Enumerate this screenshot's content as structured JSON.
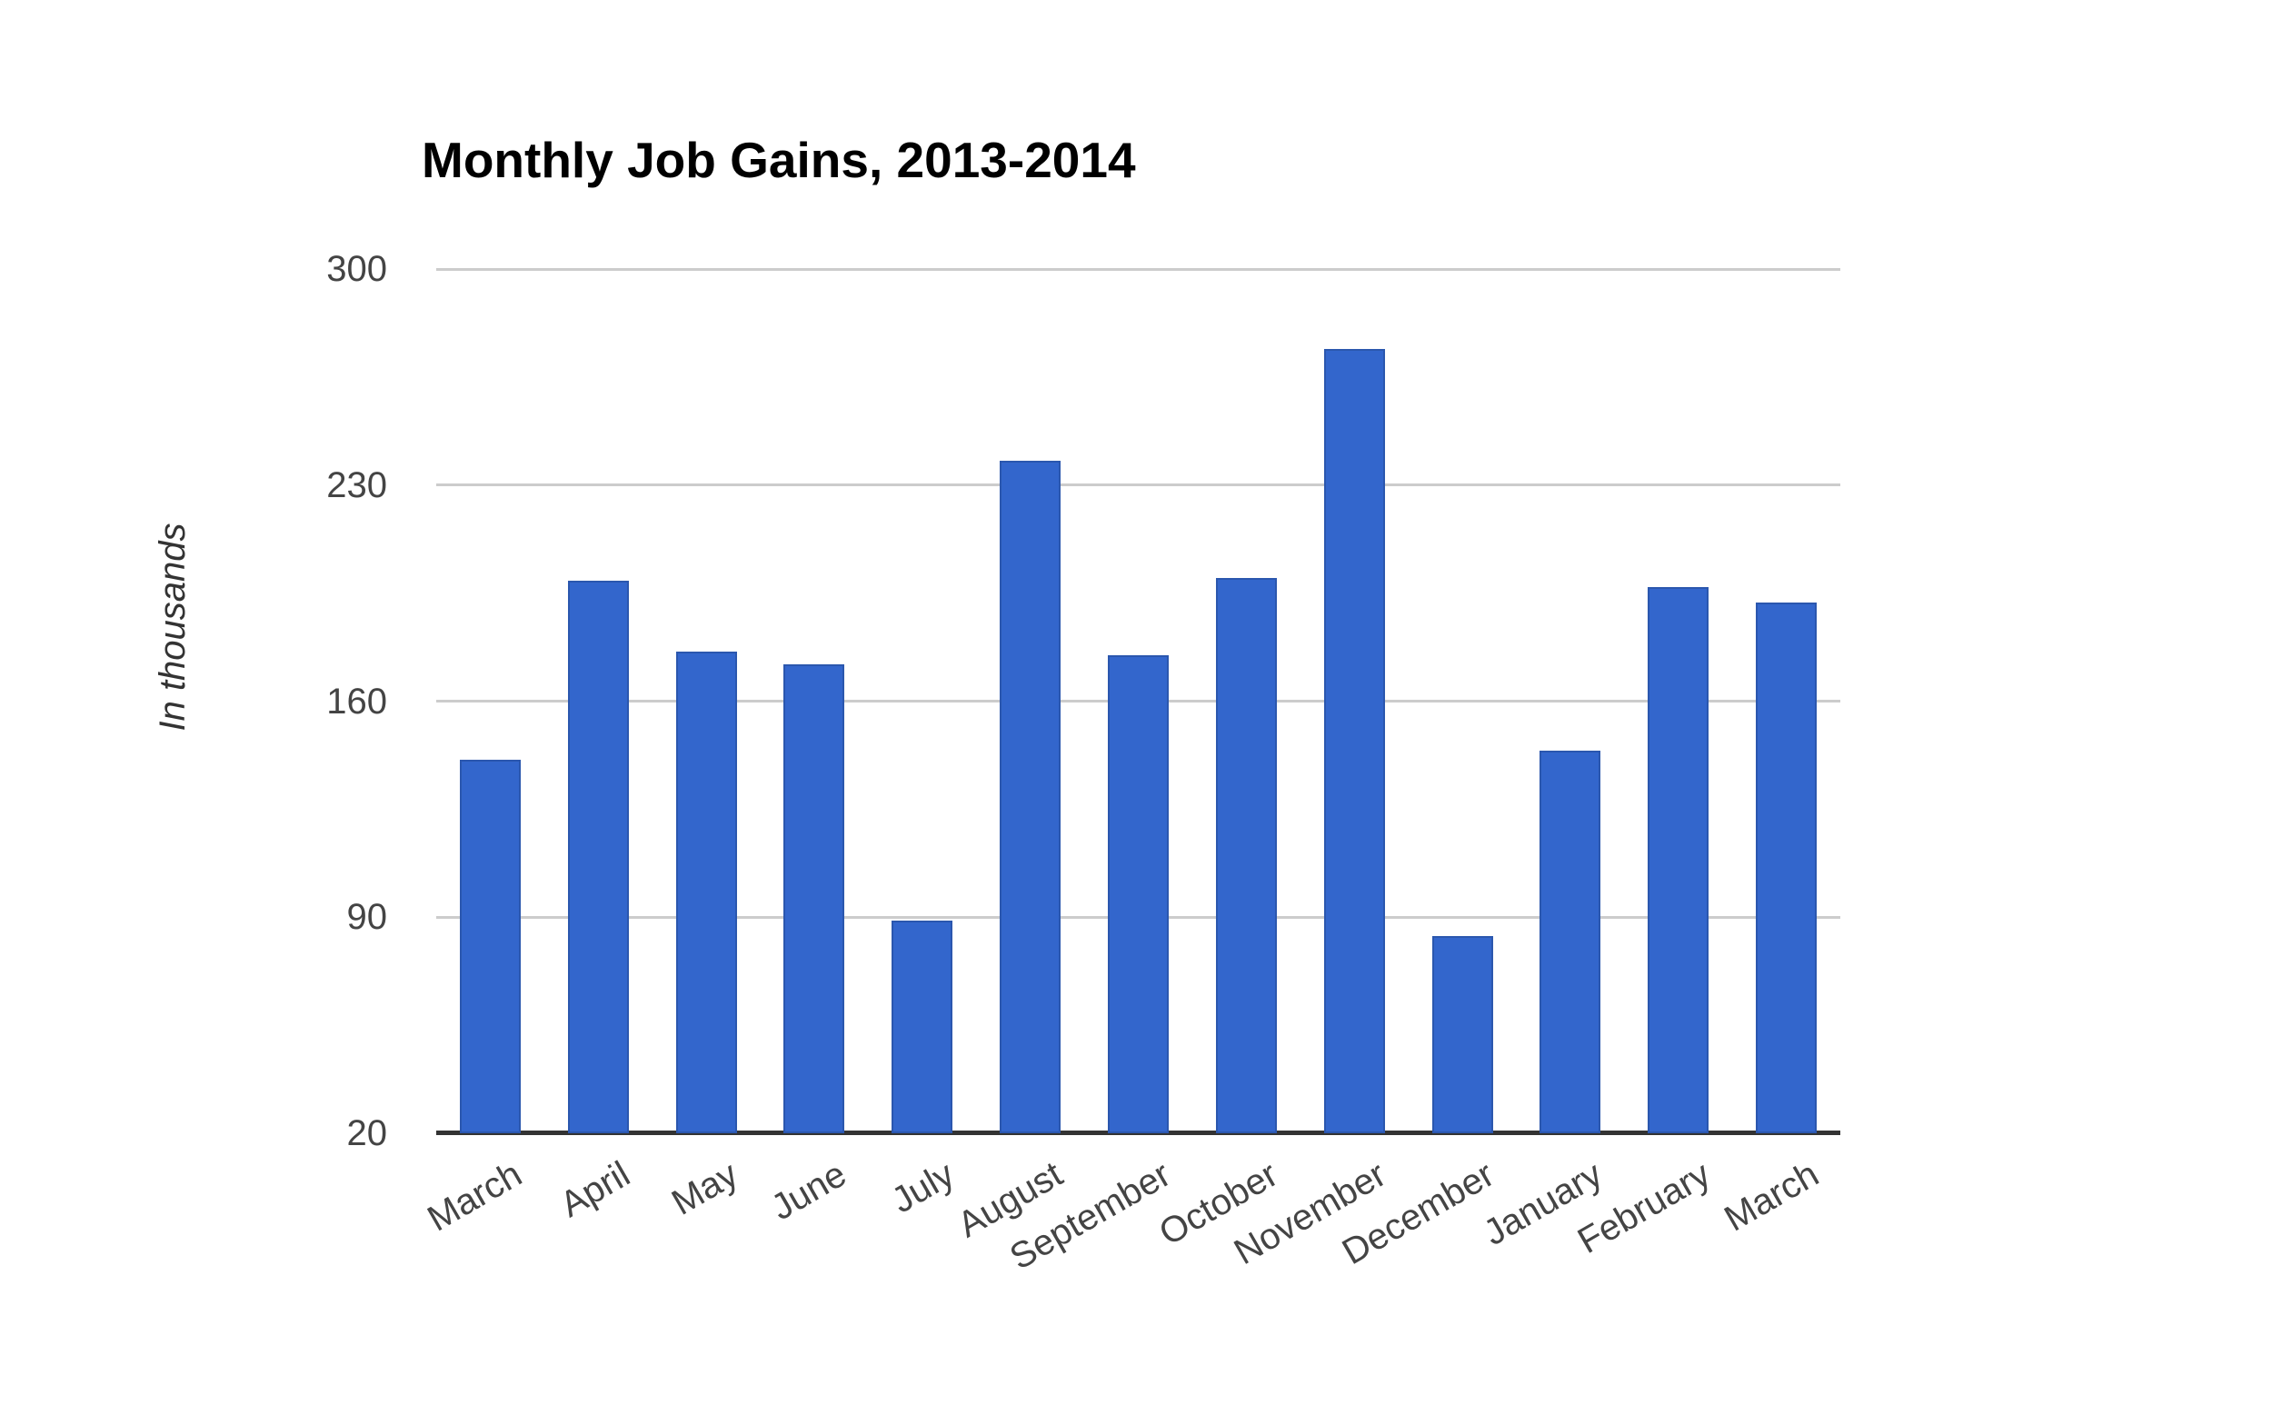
{
  "chart_data": {
    "type": "bar",
    "title": "Monthly Job Gains, 2013-2014",
    "ylabel": "In thousands",
    "xlabel": "",
    "categories": [
      "March",
      "April",
      "May",
      "June",
      "July",
      "August",
      "September",
      "October",
      "November",
      "December",
      "January",
      "February",
      "March"
    ],
    "values": [
      141,
      199,
      176,
      172,
      89,
      238,
      175,
      200,
      274,
      84,
      144,
      197,
      192
    ],
    "series_unit": "thousands of jobs",
    "yticks": [
      20,
      90,
      160,
      230,
      300
    ],
    "ylim": [
      20,
      300
    ],
    "grid": true,
    "legend_position": "none",
    "bar_fill_color": "#3366cc",
    "bar_border_color": "#2b57ae",
    "gridline_color": "#cccccc",
    "baseline_color": "#333333",
    "ytick_label_color": "#444444",
    "xtick_label_color": "#444444",
    "title_color": "#000000",
    "ylabel_color": "#333333"
  }
}
